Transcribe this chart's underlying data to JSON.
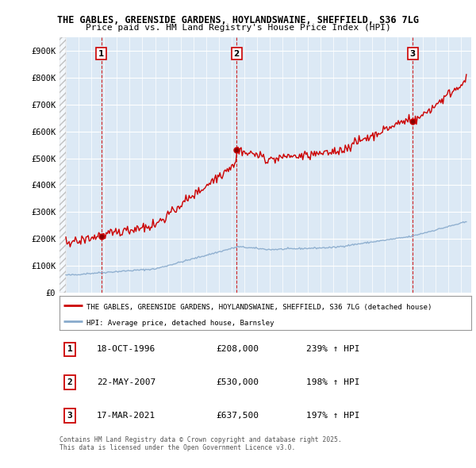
{
  "title_line1": "THE GABLES, GREENSIDE GARDENS, HOYLANDSWAINE, SHEFFIELD, S36 7LG",
  "title_line2": "Price paid vs. HM Land Registry's House Price Index (HPI)",
  "legend_property": "THE GABLES, GREENSIDE GARDENS, HOYLANDSWAINE, SHEFFIELD, S36 7LG (detached house)",
  "legend_hpi": "HPI: Average price, detached house, Barnsley",
  "sale_points": [
    {
      "num": 1,
      "date": "18-OCT-1996",
      "price": 208000,
      "hpi_pct": "239% ↑ HPI",
      "year": 1996.79
    },
    {
      "num": 2,
      "date": "22-MAY-2007",
      "price": 530000,
      "hpi_pct": "198% ↑ HPI",
      "year": 2007.39
    },
    {
      "num": 3,
      "date": "17-MAR-2021",
      "price": 637500,
      "hpi_pct": "197% ↑ HPI",
      "year": 2021.21
    }
  ],
  "ylim": [
    0,
    950000
  ],
  "yticks": [
    0,
    100000,
    200000,
    300000,
    400000,
    500000,
    600000,
    700000,
    800000,
    900000
  ],
  "ytick_labels": [
    "£0",
    "£100K",
    "£200K",
    "£300K",
    "£400K",
    "£500K",
    "£600K",
    "£700K",
    "£800K",
    "£900K"
  ],
  "xlim_start": 1993.5,
  "xlim_end": 2025.8,
  "property_color": "#cc0000",
  "hpi_color": "#88aacc",
  "background_color": "#ffffff",
  "plot_bg_color": "#dce9f5",
  "grid_color": "#ffffff",
  "footnote": "Contains HM Land Registry data © Crown copyright and database right 2025.\nThis data is licensed under the Open Government Licence v3.0."
}
